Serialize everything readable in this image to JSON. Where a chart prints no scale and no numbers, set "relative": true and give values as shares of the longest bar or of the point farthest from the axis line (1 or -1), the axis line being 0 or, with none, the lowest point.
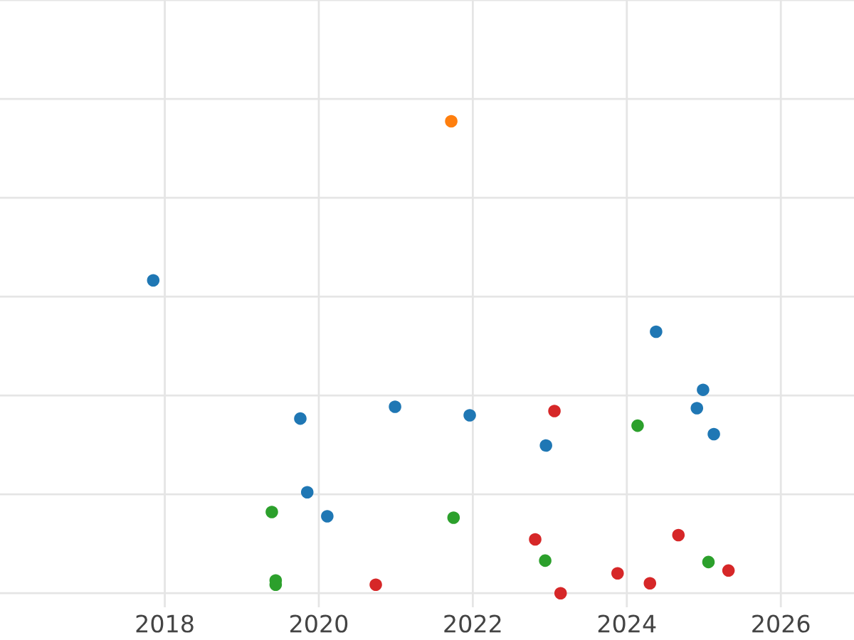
{
  "chart_data": {
    "type": "scatter",
    "relative": true,
    "xlim": [
      2015.86,
      2026.95
    ],
    "xticks": [
      2018,
      2020,
      2022,
      2024,
      2026
    ],
    "tick_labels": "x",
    "grid": true,
    "marker": "circle",
    "series": [
      {
        "color": "#ff7f0e",
        "x": [
          2021.72
        ],
        "values": [
          1.0
        ]
      },
      {
        "color": "#1f77b4",
        "x": [
          2017.85,
          2024.38,
          2024.99,
          2024.91,
          2025.13,
          2019.76,
          2020.99,
          2021.96,
          2022.95,
          2019.85,
          2020.11
        ],
        "values": [
          0.663,
          0.554,
          0.431,
          0.392,
          0.337,
          0.37,
          0.395,
          0.377,
          0.313,
          0.214,
          0.163
        ]
      },
      {
        "color": "#d62728",
        "x": [
          2023.06,
          2022.81,
          2024.67,
          2023.88,
          2024.3,
          2025.32,
          2023.14,
          2020.74
        ],
        "values": [
          0.386,
          0.114,
          0.123,
          0.042,
          0.021,
          0.048,
          0.0,
          0.018
        ]
      },
      {
        "color": "#2ca02c",
        "x": [
          2019.39,
          2021.75,
          2024.14,
          2022.94,
          2025.06,
          2019.44,
          2019.44
        ],
        "values": [
          0.172,
          0.16,
          0.355,
          0.069,
          0.066,
          0.027,
          0.018
        ]
      }
    ]
  }
}
